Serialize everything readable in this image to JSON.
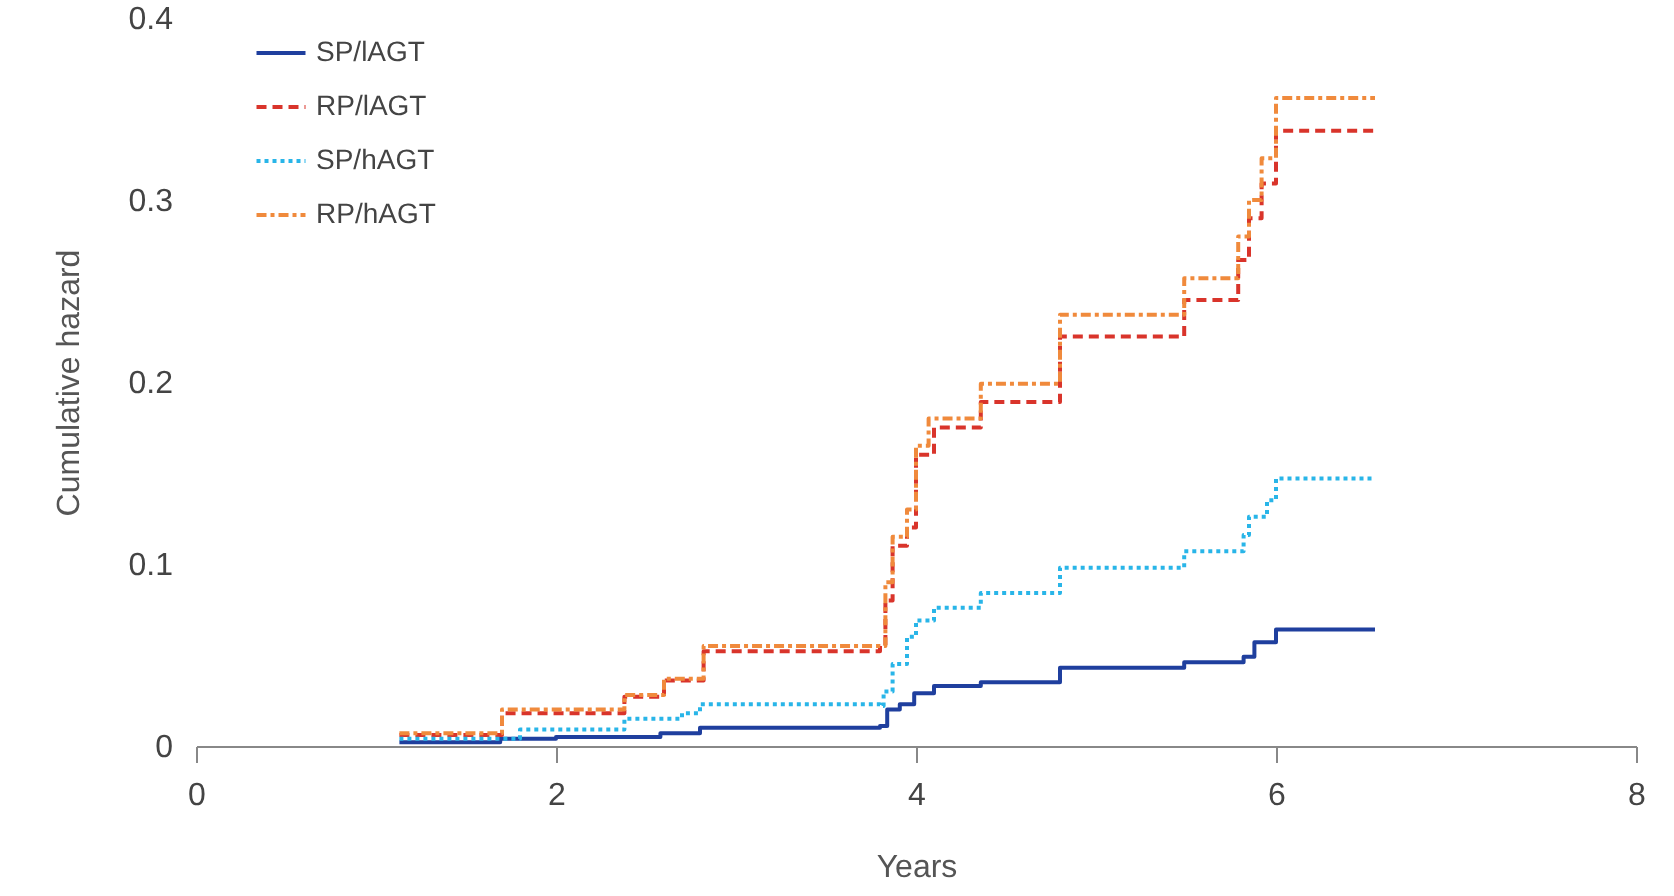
{
  "chart_data": {
    "type": "step",
    "xlabel": "Years",
    "ylabel": "Cumulative hazard",
    "xlim": [
      0,
      8
    ],
    "xticks": [
      0,
      2,
      4,
      6,
      8
    ],
    "ylim": [
      0,
      0.4
    ],
    "yticks": [
      0,
      0.1,
      0.2,
      0.3,
      0.4
    ],
    "grid": false,
    "legend": "top left",
    "series": [
      {
        "name": "SP/lAGT",
        "color": "#1f3f9e",
        "line_style": "solid",
        "x": [
          1.13,
          1.69,
          2.0,
          2.58,
          2.8,
          3.8,
          3.84,
          3.91,
          3.99,
          4.1,
          4.36,
          4.8,
          5.49,
          5.82,
          5.88,
          6.0,
          6.55
        ],
        "values": [
          0.002,
          0.004,
          0.005,
          0.007,
          0.01,
          0.011,
          0.02,
          0.023,
          0.029,
          0.033,
          0.035,
          0.043,
          0.046,
          0.049,
          0.057,
          0.064,
          0.064
        ]
      },
      {
        "name": "RP/lAGT",
        "color": "#d9342b",
        "line_style": "dashed",
        "x": [
          1.13,
          1.7,
          2.38,
          2.6,
          2.82,
          3.8,
          3.83,
          3.87,
          3.95,
          4.0,
          4.1,
          4.36,
          4.8,
          5.49,
          5.79,
          5.85,
          5.92,
          6.0,
          6.55
        ],
        "values": [
          0.006,
          0.018,
          0.027,
          0.036,
          0.052,
          0.055,
          0.08,
          0.11,
          0.12,
          0.16,
          0.175,
          0.189,
          0.225,
          0.245,
          0.267,
          0.29,
          0.309,
          0.338,
          0.338
        ]
      },
      {
        "name": "SP/hAGT",
        "color": "#29b5e8",
        "line_style": "dotted",
        "x": [
          1.13,
          1.8,
          2.38,
          2.7,
          2.8,
          3.8,
          3.82,
          3.87,
          3.95,
          4.0,
          4.1,
          4.36,
          4.8,
          5.49,
          5.82,
          5.85,
          5.95,
          6.0,
          6.55
        ],
        "values": [
          0.004,
          0.009,
          0.015,
          0.018,
          0.023,
          0.022,
          0.03,
          0.045,
          0.06,
          0.069,
          0.076,
          0.084,
          0.098,
          0.107,
          0.116,
          0.126,
          0.135,
          0.147,
          0.147
        ]
      },
      {
        "name": "RP/hAGT",
        "color": "#f08a3c",
        "line_style": "dashdot",
        "x": [
          1.13,
          1.7,
          2.38,
          2.6,
          2.82,
          3.8,
          3.83,
          3.87,
          3.95,
          4.0,
          4.07,
          4.36,
          4.8,
          5.49,
          5.79,
          5.85,
          5.92,
          6.0,
          6.55
        ],
        "values": [
          0.007,
          0.02,
          0.028,
          0.037,
          0.055,
          0.055,
          0.09,
          0.115,
          0.13,
          0.165,
          0.18,
          0.199,
          0.237,
          0.257,
          0.28,
          0.3,
          0.323,
          0.356,
          0.356
        ]
      }
    ]
  }
}
